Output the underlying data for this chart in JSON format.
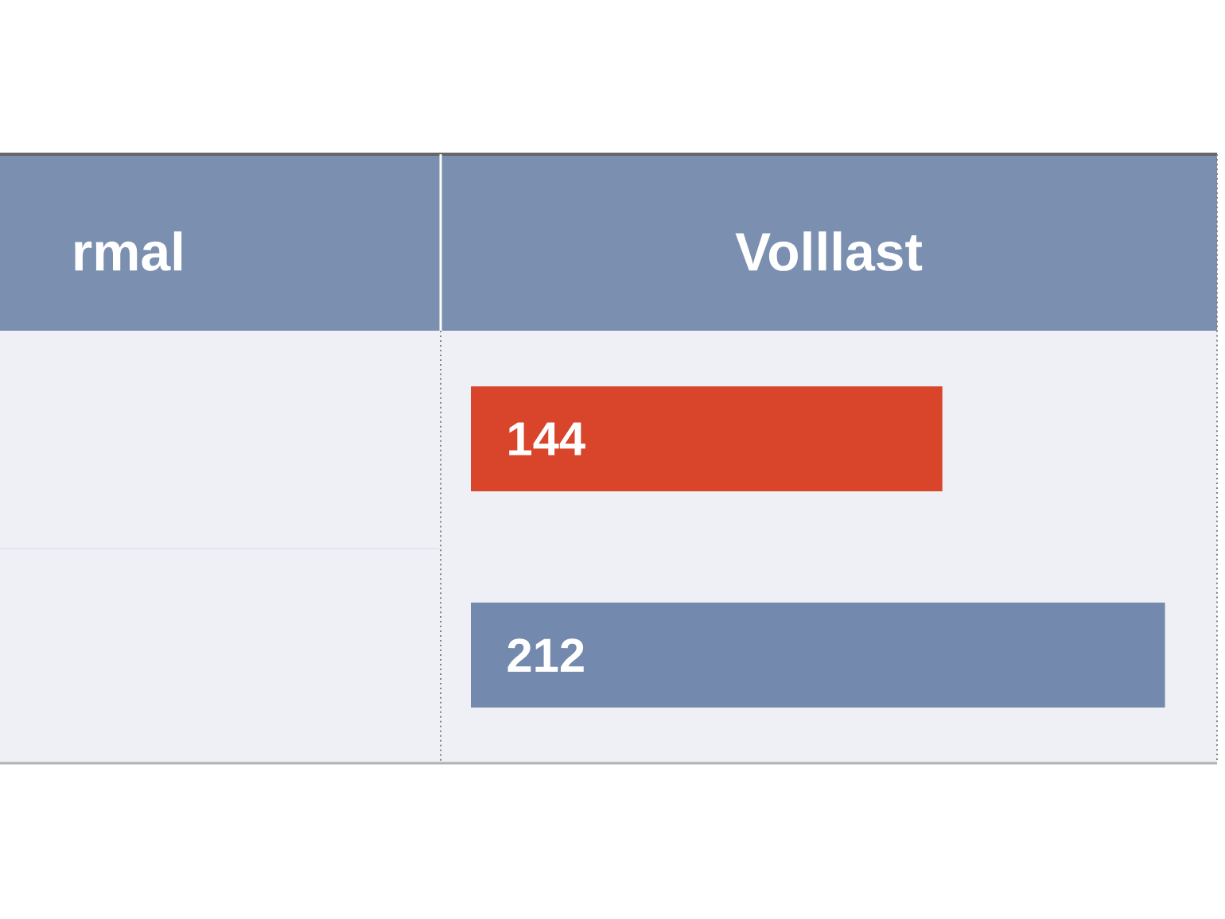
{
  "chart_data": [
    {
      "type": "other",
      "title": "rmal"
    },
    {
      "type": "bar",
      "orientation": "horizontal",
      "title": "Volllast",
      "categories": [
        null,
        null
      ],
      "values": [
        144,
        212
      ],
      "colors": [
        "#d8452a",
        "#7489ae"
      ],
      "data_labels": true
    }
  ]
}
